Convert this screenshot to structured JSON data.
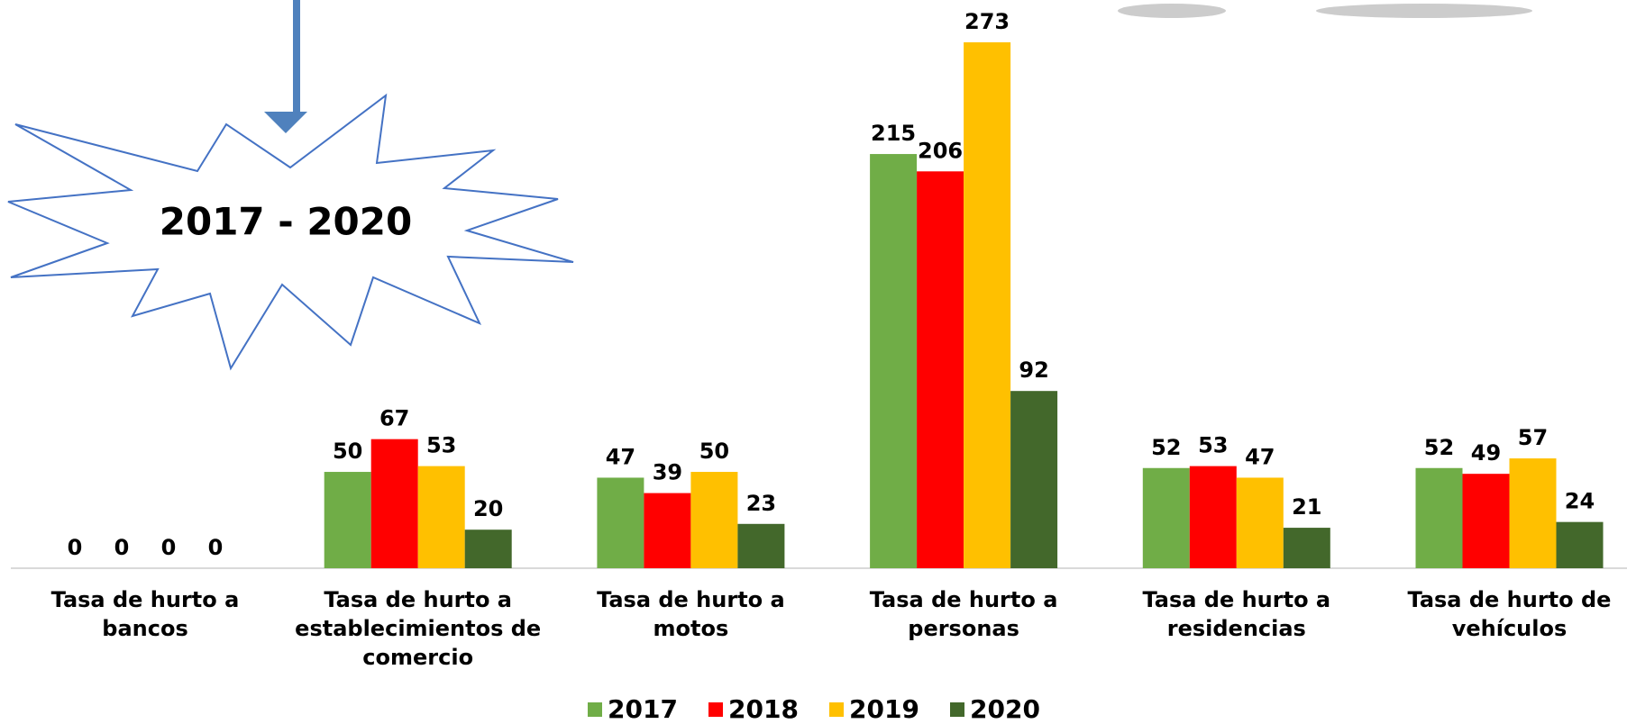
{
  "chart_data": {
    "type": "bar",
    "annotation": "2017 - 2020",
    "categories": [
      "Tasa de hurto a bancos",
      "Tasa de hurto a establecimientos de comercio",
      "Tasa de hurto a motos",
      "Tasa de hurto a personas",
      "Tasa de hurto a residencias",
      "Tasa de hurto de vehículos"
    ],
    "series": [
      {
        "name": "2017",
        "color": "#70ad47",
        "values": [
          0,
          50,
          47,
          215,
          52,
          52
        ]
      },
      {
        "name": "2018",
        "color": "#ff0000",
        "values": [
          0,
          67,
          39,
          206,
          53,
          49
        ]
      },
      {
        "name": "2019",
        "color": "#ffc000",
        "values": [
          0,
          53,
          50,
          273,
          47,
          57
        ]
      },
      {
        "name": "2020",
        "color": "#43682b",
        "values": [
          0,
          20,
          23,
          92,
          21,
          24
        ]
      }
    ],
    "ylim": [
      0,
      280
    ],
    "legend": "bottom"
  }
}
